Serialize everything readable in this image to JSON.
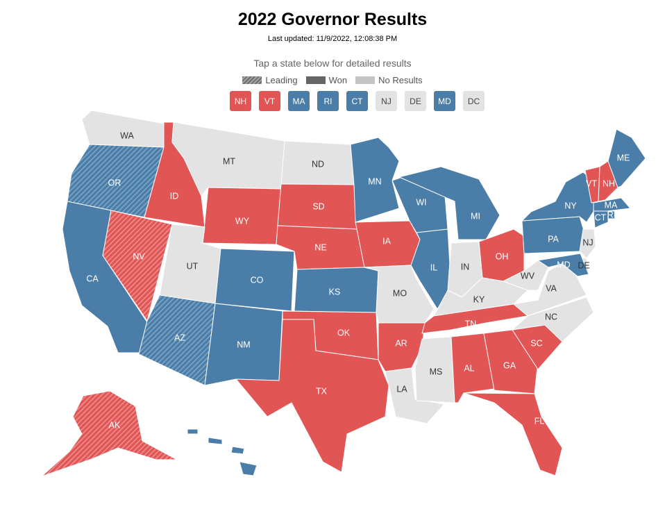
{
  "header": {
    "title": "2022 Governor Results",
    "updated": "Last updated: 11/9/2022, 12:08:38 PM",
    "prompt": "Tap a state below for detailed results"
  },
  "legend": {
    "leading": "Leading",
    "won": "Won",
    "no_results": "No Results"
  },
  "colors": {
    "dem": "#4a7ea8",
    "rep": "#e25555",
    "none": "#e3e3e3",
    "dem_label": "#ffffff",
    "rep_label": "#ffffff",
    "none_label": "#333333"
  },
  "small_states": [
    {
      "abbr": "NH",
      "party": "rep"
    },
    {
      "abbr": "VT",
      "party": "rep"
    },
    {
      "abbr": "MA",
      "party": "dem"
    },
    {
      "abbr": "RI",
      "party": "dem"
    },
    {
      "abbr": "CT",
      "party": "dem"
    },
    {
      "abbr": "NJ",
      "party": "none"
    },
    {
      "abbr": "DE",
      "party": "none"
    },
    {
      "abbr": "MD",
      "party": "dem"
    },
    {
      "abbr": "DC",
      "party": "none"
    }
  ],
  "states": [
    {
      "abbr": "WA",
      "party": "none",
      "status": "none"
    },
    {
      "abbr": "OR",
      "party": "dem",
      "status": "leading"
    },
    {
      "abbr": "CA",
      "party": "dem",
      "status": "won"
    },
    {
      "abbr": "NV",
      "party": "rep",
      "status": "leading"
    },
    {
      "abbr": "ID",
      "party": "rep",
      "status": "won"
    },
    {
      "abbr": "MT",
      "party": "none",
      "status": "none"
    },
    {
      "abbr": "WY",
      "party": "rep",
      "status": "won"
    },
    {
      "abbr": "UT",
      "party": "none",
      "status": "none"
    },
    {
      "abbr": "AZ",
      "party": "dem",
      "status": "leading"
    },
    {
      "abbr": "CO",
      "party": "dem",
      "status": "won"
    },
    {
      "abbr": "NM",
      "party": "dem",
      "status": "won"
    },
    {
      "abbr": "ND",
      "party": "none",
      "status": "none"
    },
    {
      "abbr": "SD",
      "party": "rep",
      "status": "won"
    },
    {
      "abbr": "NE",
      "party": "rep",
      "status": "won"
    },
    {
      "abbr": "KS",
      "party": "dem",
      "status": "won"
    },
    {
      "abbr": "OK",
      "party": "rep",
      "status": "won"
    },
    {
      "abbr": "TX",
      "party": "rep",
      "status": "won"
    },
    {
      "abbr": "MN",
      "party": "dem",
      "status": "won"
    },
    {
      "abbr": "IA",
      "party": "rep",
      "status": "won"
    },
    {
      "abbr": "MO",
      "party": "none",
      "status": "none"
    },
    {
      "abbr": "AR",
      "party": "rep",
      "status": "won"
    },
    {
      "abbr": "LA",
      "party": "none",
      "status": "none"
    },
    {
      "abbr": "WI",
      "party": "dem",
      "status": "won"
    },
    {
      "abbr": "IL",
      "party": "dem",
      "status": "won"
    },
    {
      "abbr": "MI",
      "party": "dem",
      "status": "won"
    },
    {
      "abbr": "IN",
      "party": "none",
      "status": "none"
    },
    {
      "abbr": "OH",
      "party": "rep",
      "status": "won"
    },
    {
      "abbr": "KY",
      "party": "none",
      "status": "none"
    },
    {
      "abbr": "TN",
      "party": "rep",
      "status": "won"
    },
    {
      "abbr": "MS",
      "party": "none",
      "status": "none"
    },
    {
      "abbr": "AL",
      "party": "rep",
      "status": "won"
    },
    {
      "abbr": "GA",
      "party": "rep",
      "status": "won"
    },
    {
      "abbr": "FL",
      "party": "rep",
      "status": "won"
    },
    {
      "abbr": "SC",
      "party": "rep",
      "status": "won"
    },
    {
      "abbr": "NC",
      "party": "none",
      "status": "none"
    },
    {
      "abbr": "VA",
      "party": "none",
      "status": "none"
    },
    {
      "abbr": "WV",
      "party": "none",
      "status": "none"
    },
    {
      "abbr": "PA",
      "party": "dem",
      "status": "won"
    },
    {
      "abbr": "NY",
      "party": "dem",
      "status": "won"
    },
    {
      "abbr": "VT",
      "party": "rep",
      "status": "won"
    },
    {
      "abbr": "NH",
      "party": "rep",
      "status": "won"
    },
    {
      "abbr": "ME",
      "party": "dem",
      "status": "won"
    },
    {
      "abbr": "MA",
      "party": "dem",
      "status": "won"
    },
    {
      "abbr": "RI",
      "party": "dem",
      "status": "won"
    },
    {
      "abbr": "CT",
      "party": "dem",
      "status": "won"
    },
    {
      "abbr": "NJ",
      "party": "none",
      "status": "none"
    },
    {
      "abbr": "DE",
      "party": "none",
      "status": "none"
    },
    {
      "abbr": "MD",
      "party": "dem",
      "status": "won"
    },
    {
      "abbr": "AK",
      "party": "rep",
      "status": "leading"
    },
    {
      "abbr": "HI",
      "party": "dem",
      "status": "won"
    }
  ]
}
